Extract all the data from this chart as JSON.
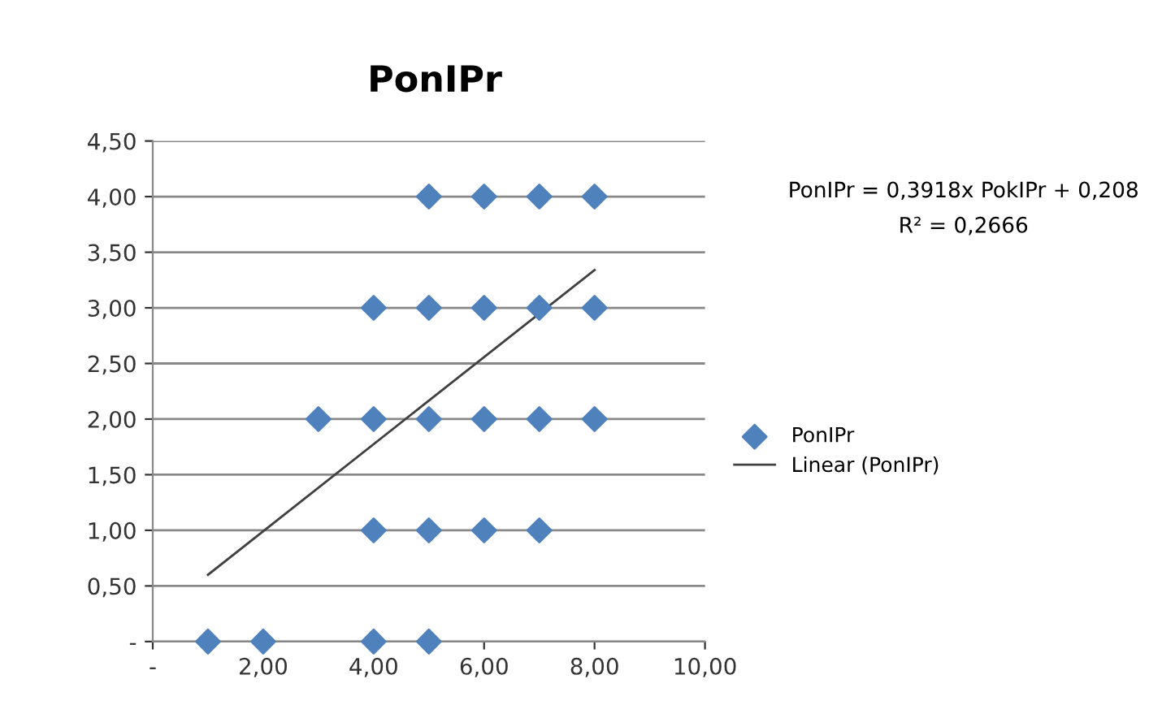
{
  "chart_data": {
    "type": "scatter",
    "title": "PonIPr",
    "series": [
      {
        "name": "PonIPr",
        "type": "scatter",
        "color": "#4f81bd",
        "marker": "diamond",
        "x": [
          5,
          6,
          7,
          8,
          4,
          5,
          6,
          7,
          8,
          3,
          4,
          5,
          6,
          7,
          8,
          4,
          5,
          6,
          7,
          1,
          2,
          4,
          5
        ],
        "values": [
          4,
          4,
          4,
          4,
          3,
          3,
          3,
          3,
          3,
          2,
          2,
          2,
          2,
          2,
          2,
          1,
          1,
          1,
          1,
          0,
          0,
          0,
          0
        ]
      },
      {
        "name": "Linear (PonIPr)",
        "type": "line",
        "color": "#404040",
        "marker": "none",
        "line_style": "solid",
        "x": [
          1,
          8
        ],
        "values": [
          0.6,
          3.34
        ]
      }
    ],
    "xlim": [
      0,
      10
    ],
    "xticks": [
      {
        "value": 0,
        "label": "-"
      },
      {
        "value": 2,
        "label": "2,00"
      },
      {
        "value": 4,
        "label": "4,00"
      },
      {
        "value": 6,
        "label": "6,00"
      },
      {
        "value": 8,
        "label": "8,00"
      },
      {
        "value": 10,
        "label": "10,00"
      }
    ],
    "ylim": [
      0,
      4.5
    ],
    "yticks": [
      {
        "value": 0,
        "label": "-"
      },
      {
        "value": 0.5,
        "label": "0,50"
      },
      {
        "value": 1,
        "label": "1,00"
      },
      {
        "value": 1.5,
        "label": "1,50"
      },
      {
        "value": 2,
        "label": "2,00"
      },
      {
        "value": 2.5,
        "label": "2,50"
      },
      {
        "value": 3,
        "label": "3,00"
      },
      {
        "value": 3.5,
        "label": "3,50"
      },
      {
        "value": 4,
        "label": "4,00"
      },
      {
        "value": 4.5,
        "label": "4,50"
      }
    ],
    "grid": "y",
    "legend": "right",
    "annotations": [
      "PonIPr = 0,3918x PokIPr + 0,208",
      "R² = 0,2666"
    ]
  }
}
